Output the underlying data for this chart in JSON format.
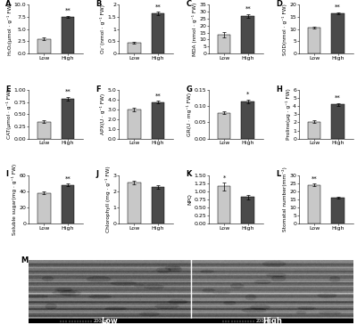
{
  "panels": [
    {
      "label": "A",
      "ylabel": "H₂O₂(μmol · g⁻¹ FW)",
      "ylim": [
        0,
        10.0
      ],
      "yticks": [
        0.0,
        2.5,
        5.0,
        7.5,
        10.0
      ],
      "ytick_labels": [
        "0.0",
        "2.5",
        "5.0",
        "7.5",
        "10.0"
      ],
      "low_val": 3.0,
      "high_val": 7.5,
      "low_err": 0.25,
      "high_err": 0.25,
      "sig": "**",
      "low_higher": false
    },
    {
      "label": "B",
      "ylabel": "O₂⁻(nmol · g⁻¹ FW)",
      "ylim": [
        0,
        2.0
      ],
      "yticks": [
        0,
        0.5,
        1.0,
        1.5,
        2.0
      ],
      "ytick_labels": [
        "0",
        "0.5",
        "1",
        "1.5",
        "2"
      ],
      "low_val": 0.45,
      "high_val": 1.65,
      "low_err": 0.04,
      "high_err": 0.07,
      "sig": "**",
      "low_higher": false
    },
    {
      "label": "C",
      "ylabel": "MDA (nmol · g⁻¹ FW)",
      "ylim": [
        0,
        35
      ],
      "yticks": [
        0,
        5,
        10,
        15,
        20,
        25,
        30,
        35
      ],
      "ytick_labels": [
        "0",
        "5",
        "10",
        "15",
        "20",
        "25",
        "30",
        "35"
      ],
      "low_val": 13.5,
      "high_val": 27.0,
      "low_err": 2.0,
      "high_err": 1.5,
      "sig": "**",
      "low_higher": false
    },
    {
      "label": "D",
      "ylabel": "SOD(nmol · g⁻¹ FW)",
      "ylim": [
        0,
        20
      ],
      "yticks": [
        0,
        5,
        10,
        15,
        20
      ],
      "ytick_labels": [
        "0",
        "5",
        "10",
        "15",
        "20"
      ],
      "low_val": 10.5,
      "high_val": 16.5,
      "low_err": 0.4,
      "high_err": 0.5,
      "sig": "**",
      "low_higher": false
    },
    {
      "label": "E",
      "ylabel": "CAT(μmol · g⁻¹ FW)",
      "ylim": [
        0.0,
        1.0
      ],
      "yticks": [
        0.0,
        0.25,
        0.5,
        0.75,
        1.0
      ],
      "ytick_labels": [
        "0.00",
        "0.25",
        "0.50",
        "0.75",
        "1.00"
      ],
      "low_val": 0.35,
      "high_val": 0.82,
      "low_err": 0.03,
      "high_err": 0.04,
      "sig": "**",
      "low_higher": false
    },
    {
      "label": "F",
      "ylabel": "APX(U · g⁻¹ FW)",
      "ylim": [
        0.0,
        5.0
      ],
      "yticks": [
        0.0,
        1.0,
        2.0,
        3.0,
        4.0,
        5.0
      ],
      "ytick_labels": [
        "0.0",
        "1.0",
        "2.0",
        "3.0",
        "4.0",
        "5.0"
      ],
      "low_val": 3.0,
      "high_val": 3.75,
      "low_err": 0.15,
      "high_err": 0.12,
      "sig": "**",
      "low_higher": false
    },
    {
      "label": "G",
      "ylabel": "GR(U · mg⁻¹ FW)",
      "ylim": [
        0.0,
        0.15
      ],
      "yticks": [
        0.0,
        0.05,
        0.1,
        0.15
      ],
      "ytick_labels": [
        "0.00",
        "0.05",
        "0.10",
        "0.15"
      ],
      "low_val": 0.08,
      "high_val": 0.115,
      "low_err": 0.005,
      "high_err": 0.006,
      "sig": "*",
      "low_higher": false
    },
    {
      "label": "H",
      "ylabel": "Proline(μg · g⁻¹ FW)",
      "ylim": [
        0,
        6
      ],
      "yticks": [
        0,
        1,
        2,
        3,
        4,
        5,
        6
      ],
      "ytick_labels": [
        "0",
        "1",
        "2",
        "3",
        "4",
        "5",
        "6"
      ],
      "low_val": 2.1,
      "high_val": 4.2,
      "low_err": 0.15,
      "high_err": 0.2,
      "sig": "**",
      "low_higher": false
    },
    {
      "label": "I",
      "ylabel": "Soluble sugar(mg · g⁻¹ FW)",
      "ylim": [
        0,
        60
      ],
      "yticks": [
        0,
        20,
        40,
        60
      ],
      "ytick_labels": [
        "0",
        "20",
        "40",
        "60"
      ],
      "low_val": 38.0,
      "high_val": 48.0,
      "low_err": 1.5,
      "high_err": 1.2,
      "sig": "**",
      "low_higher": false
    },
    {
      "label": "J",
      "ylabel": "Chlorophyll (mg · g⁻¹ FW)",
      "ylim": [
        0,
        3
      ],
      "yticks": [
        0,
        1,
        2,
        3
      ],
      "ytick_labels": [
        "0",
        "1",
        "2",
        "3"
      ],
      "low_val": 2.55,
      "high_val": 2.25,
      "low_err": 0.12,
      "high_err": 0.1,
      "sig": "",
      "low_higher": true
    },
    {
      "label": "K",
      "ylabel": "NPQ",
      "ylim": [
        0.0,
        1.5
      ],
      "yticks": [
        0.0,
        0.25,
        0.5,
        0.75,
        1.0,
        1.25,
        1.5
      ],
      "ytick_labels": [
        "0.00",
        "0.25",
        "0.50",
        "0.75",
        "1.00",
        "1.25",
        "1.50"
      ],
      "low_val": 1.15,
      "high_val": 0.82,
      "low_err": 0.12,
      "high_err": 0.06,
      "sig": "*",
      "low_higher": true
    },
    {
      "label": "L",
      "ylabel": "Stomatal number(mm⁻²)",
      "ylim": [
        0,
        30
      ],
      "yticks": [
        0,
        5,
        10,
        15,
        20,
        25,
        30
      ],
      "ytick_labels": [
        "0",
        "5",
        "10",
        "15",
        "20",
        "25",
        "30"
      ],
      "low_val": 24.0,
      "high_val": 16.0,
      "low_err": 0.8,
      "high_err": 0.7,
      "sig": "**",
      "low_higher": true
    }
  ],
  "bar_color_low": "#c8c8c8",
  "bar_color_high": "#4a4a4a",
  "xlabel_low": "Low",
  "xlabel_high": "High",
  "bar_width": 0.55,
  "panel_label_fontsize": 6,
  "axis_label_fontsize": 4.2,
  "tick_fontsize": 4.5,
  "micro_label_fontsize": 6
}
